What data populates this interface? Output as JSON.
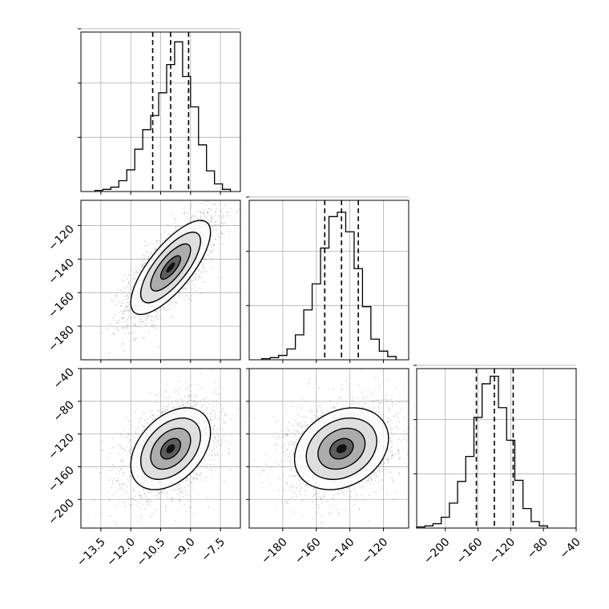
{
  "chart_data": {
    "type": "corner",
    "grid": true,
    "quantile_lines": "dashed",
    "panels": [
      {
        "id": "hist-p1",
        "type": "histogram",
        "row": 0,
        "col": 0,
        "x_range": [
          -14.5,
          -6.5
        ],
        "bins": [
          -13.6,
          -13.2,
          -12.8,
          -12.4,
          -12.0,
          -11.6,
          -11.2,
          -10.8,
          -10.4,
          -10.0,
          -9.6,
          -9.2,
          -8.8,
          -8.4,
          -8.0,
          -7.6,
          -7.2
        ],
        "counts": [
          1,
          2,
          4,
          10,
          20,
          39,
          57,
          70,
          91,
          117,
          138,
          106,
          78,
          43,
          19,
          7,
          2
        ],
        "y_max": 140,
        "y_ticks": [
          50,
          100,
          150
        ],
        "quantiles": [
          -10.9,
          -10.0,
          -9.1
        ]
      },
      {
        "id": "scatter-p1-p2",
        "type": "density",
        "row": 1,
        "col": 0,
        "x_range": [
          -14.5,
          -6.5
        ],
        "y_range": [
          -200,
          -105
        ],
        "center": [
          -10.0,
          -145
        ],
        "sigma": [
          1.0,
          14
        ],
        "rho": 0.75,
        "x_ticks": [
          -13.5,
          -12.0,
          -10.5,
          -9.0,
          -7.5
        ],
        "y_ticks": [
          "-120",
          "-140",
          "-160",
          "-180"
        ]
      },
      {
        "id": "hist-p2",
        "type": "histogram",
        "row": 1,
        "col": 1,
        "x_range": [
          -200,
          -105
        ],
        "bins": [
          -190,
          -185,
          -180,
          -175,
          -170,
          -165,
          -160,
          -155,
          -150,
          -145,
          -140,
          -135,
          -130,
          -125,
          -120,
          -115
        ],
        "counts": [
          1,
          2,
          4,
          10,
          23,
          46,
          70,
          103,
          132,
          136,
          118,
          84,
          49,
          19,
          8,
          3
        ],
        "y_max": 140,
        "y_ticks": [
          50,
          100,
          150
        ],
        "quantiles": [
          -155,
          -145,
          -135
        ]
      },
      {
        "id": "scatter-p1-p3",
        "type": "density",
        "row": 2,
        "col": 0,
        "x_range": [
          -14.5,
          -6.5
        ],
        "y_range": [
          -235,
          -40
        ],
        "center": [
          -10.0,
          -138
        ],
        "sigma": [
          1.0,
          25
        ],
        "rho": 0.4,
        "x_tick_labels": [
          "−13.5",
          "−12.0",
          "−10.5",
          "−9.0",
          "−7.5"
        ],
        "y_ticks": [
          "-40",
          "-80",
          "-120",
          "-160",
          "-200"
        ]
      },
      {
        "id": "scatter-p2-p3",
        "type": "density",
        "row": 2,
        "col": 1,
        "x_range": [
          -200,
          -105
        ],
        "y_range": [
          -235,
          -40
        ],
        "center": [
          -145,
          -138
        ],
        "sigma": [
          14,
          25
        ],
        "rho": 0.25,
        "x_tick_labels": [
          "−180",
          "−160",
          "−140",
          "−120"
        ]
      },
      {
        "id": "hist-p3",
        "type": "histogram",
        "row": 2,
        "col": 2,
        "x_range": [
          -235,
          -40
        ],
        "bins": [
          -230,
          -220,
          -210,
          -200,
          -190,
          -180,
          -170,
          -160,
          -150,
          -140,
          -130,
          -120,
          -110,
          -100,
          -90,
          -80
        ],
        "counts": [
          1,
          2,
          4,
          10,
          23,
          43,
          66,
          102,
          133,
          140,
          111,
          81,
          44,
          18,
          6,
          2
        ],
        "y_max": 140,
        "y_ticks": [
          50,
          100,
          150
        ],
        "quantiles": [
          -162,
          -140,
          -117
        ],
        "x_tick_labels": [
          "−200",
          "−160",
          "−120",
          "−80",
          "−40"
        ]
      }
    ],
    "tick_text": {
      "row1_y": [
        "−120",
        "−140",
        "−160",
        "−180"
      ],
      "row2_y": [
        "−40",
        "−80",
        "−120",
        "−160",
        "−200"
      ]
    }
  }
}
